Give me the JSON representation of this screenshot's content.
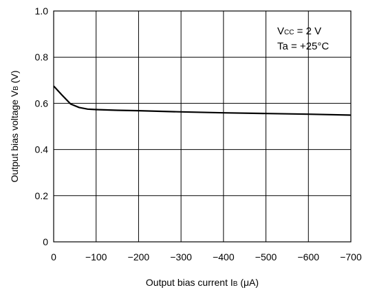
{
  "chart_data": {
    "type": "line",
    "xlabel_main": "Output bias current I",
    "xlabel_sub": "B",
    "xlabel_unit": " (μA)",
    "ylabel_main": "Output bias voltage V",
    "ylabel_sub": "B",
    "ylabel_unit": " (V)",
    "xlim": [
      0,
      -700
    ],
    "ylim": [
      0,
      1.0
    ],
    "x_ticks": [
      0,
      -100,
      -200,
      -300,
      -400,
      -500,
      -600,
      -700
    ],
    "x_tick_labels": [
      "0",
      "−100",
      "−200",
      "−300",
      "−400",
      "−500",
      "−600",
      "−700"
    ],
    "y_ticks": [
      0,
      0.2,
      0.4,
      0.6,
      0.8,
      1.0
    ],
    "y_tick_labels": [
      "0",
      "0.2",
      "0.4",
      "0.6",
      "0.8",
      "1.0"
    ],
    "grid": true,
    "annotation": {
      "line1_main": "V",
      "line1_sub": "CC",
      "line1_rest": " = 2 V",
      "line2": "Ta = +25°C"
    },
    "series": [
      {
        "x": [
          0,
          -20,
          -40,
          -60,
          -80,
          -100,
          -150,
          -200,
          -300,
          -400,
          -500,
          -600,
          -700
        ],
        "y": [
          0.675,
          0.635,
          0.597,
          0.582,
          0.575,
          0.573,
          0.57,
          0.568,
          0.563,
          0.559,
          0.556,
          0.553,
          0.549
        ]
      }
    ]
  }
}
